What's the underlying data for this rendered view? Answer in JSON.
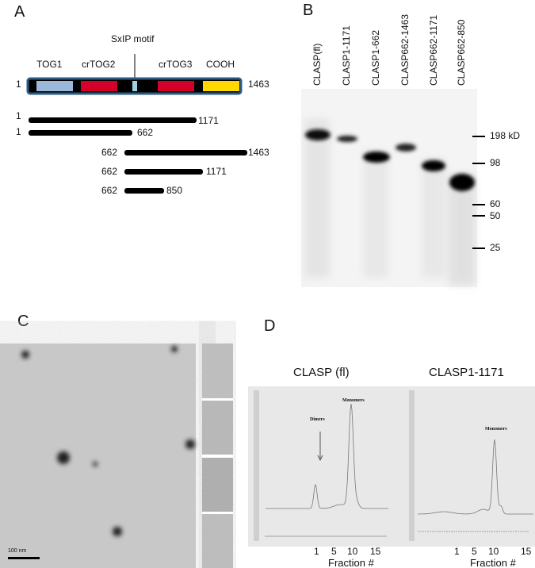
{
  "panels": {
    "a": "A",
    "b": "B",
    "c": "C",
    "d": "D"
  },
  "panel_a": {
    "motif_label": "SxIP motif",
    "domains": [
      "TOG1",
      "crTOG2",
      "crTOG3",
      "COOH"
    ],
    "start": "1",
    "end": "1463",
    "domain_colors": {
      "tog1": "#9bb8db",
      "crtog": "#d5002a",
      "cooh": "#ffd800",
      "linker": "#000000",
      "frame": "#2e5b86",
      "motif": "#9fd0e0"
    },
    "constructs": [
      {
        "start": "1",
        "end": "1171"
      },
      {
        "start": "1",
        "end": "662"
      },
      {
        "start": "662",
        "end": "1463"
      },
      {
        "start": "662",
        "end": "1171"
      },
      {
        "start": "662",
        "end": "850"
      }
    ]
  },
  "panel_b": {
    "lanes": [
      "CLASP(fl)",
      "CLASP1-1171",
      "CLASP1-662",
      "CLASP662-1463",
      "CLASP662-1171",
      "CLASP662-850"
    ],
    "markers": [
      "198 kD",
      "98",
      "60",
      "50",
      "25"
    ]
  },
  "panel_c": {
    "scale_bar": "100 nm"
  },
  "panel_d": {
    "charts": [
      {
        "title": "CLASP (fl)",
        "annotations": [
          "Dimers",
          "Monomers"
        ],
        "ticks": [
          "1",
          "5",
          "10",
          "15"
        ],
        "xlabel": "Fraction #"
      },
      {
        "title": "CLASP1-1171",
        "annotations": [
          "Monomers"
        ],
        "ticks": [
          "1",
          "5",
          "10",
          "15"
        ],
        "xlabel": "Fraction #"
      }
    ]
  }
}
